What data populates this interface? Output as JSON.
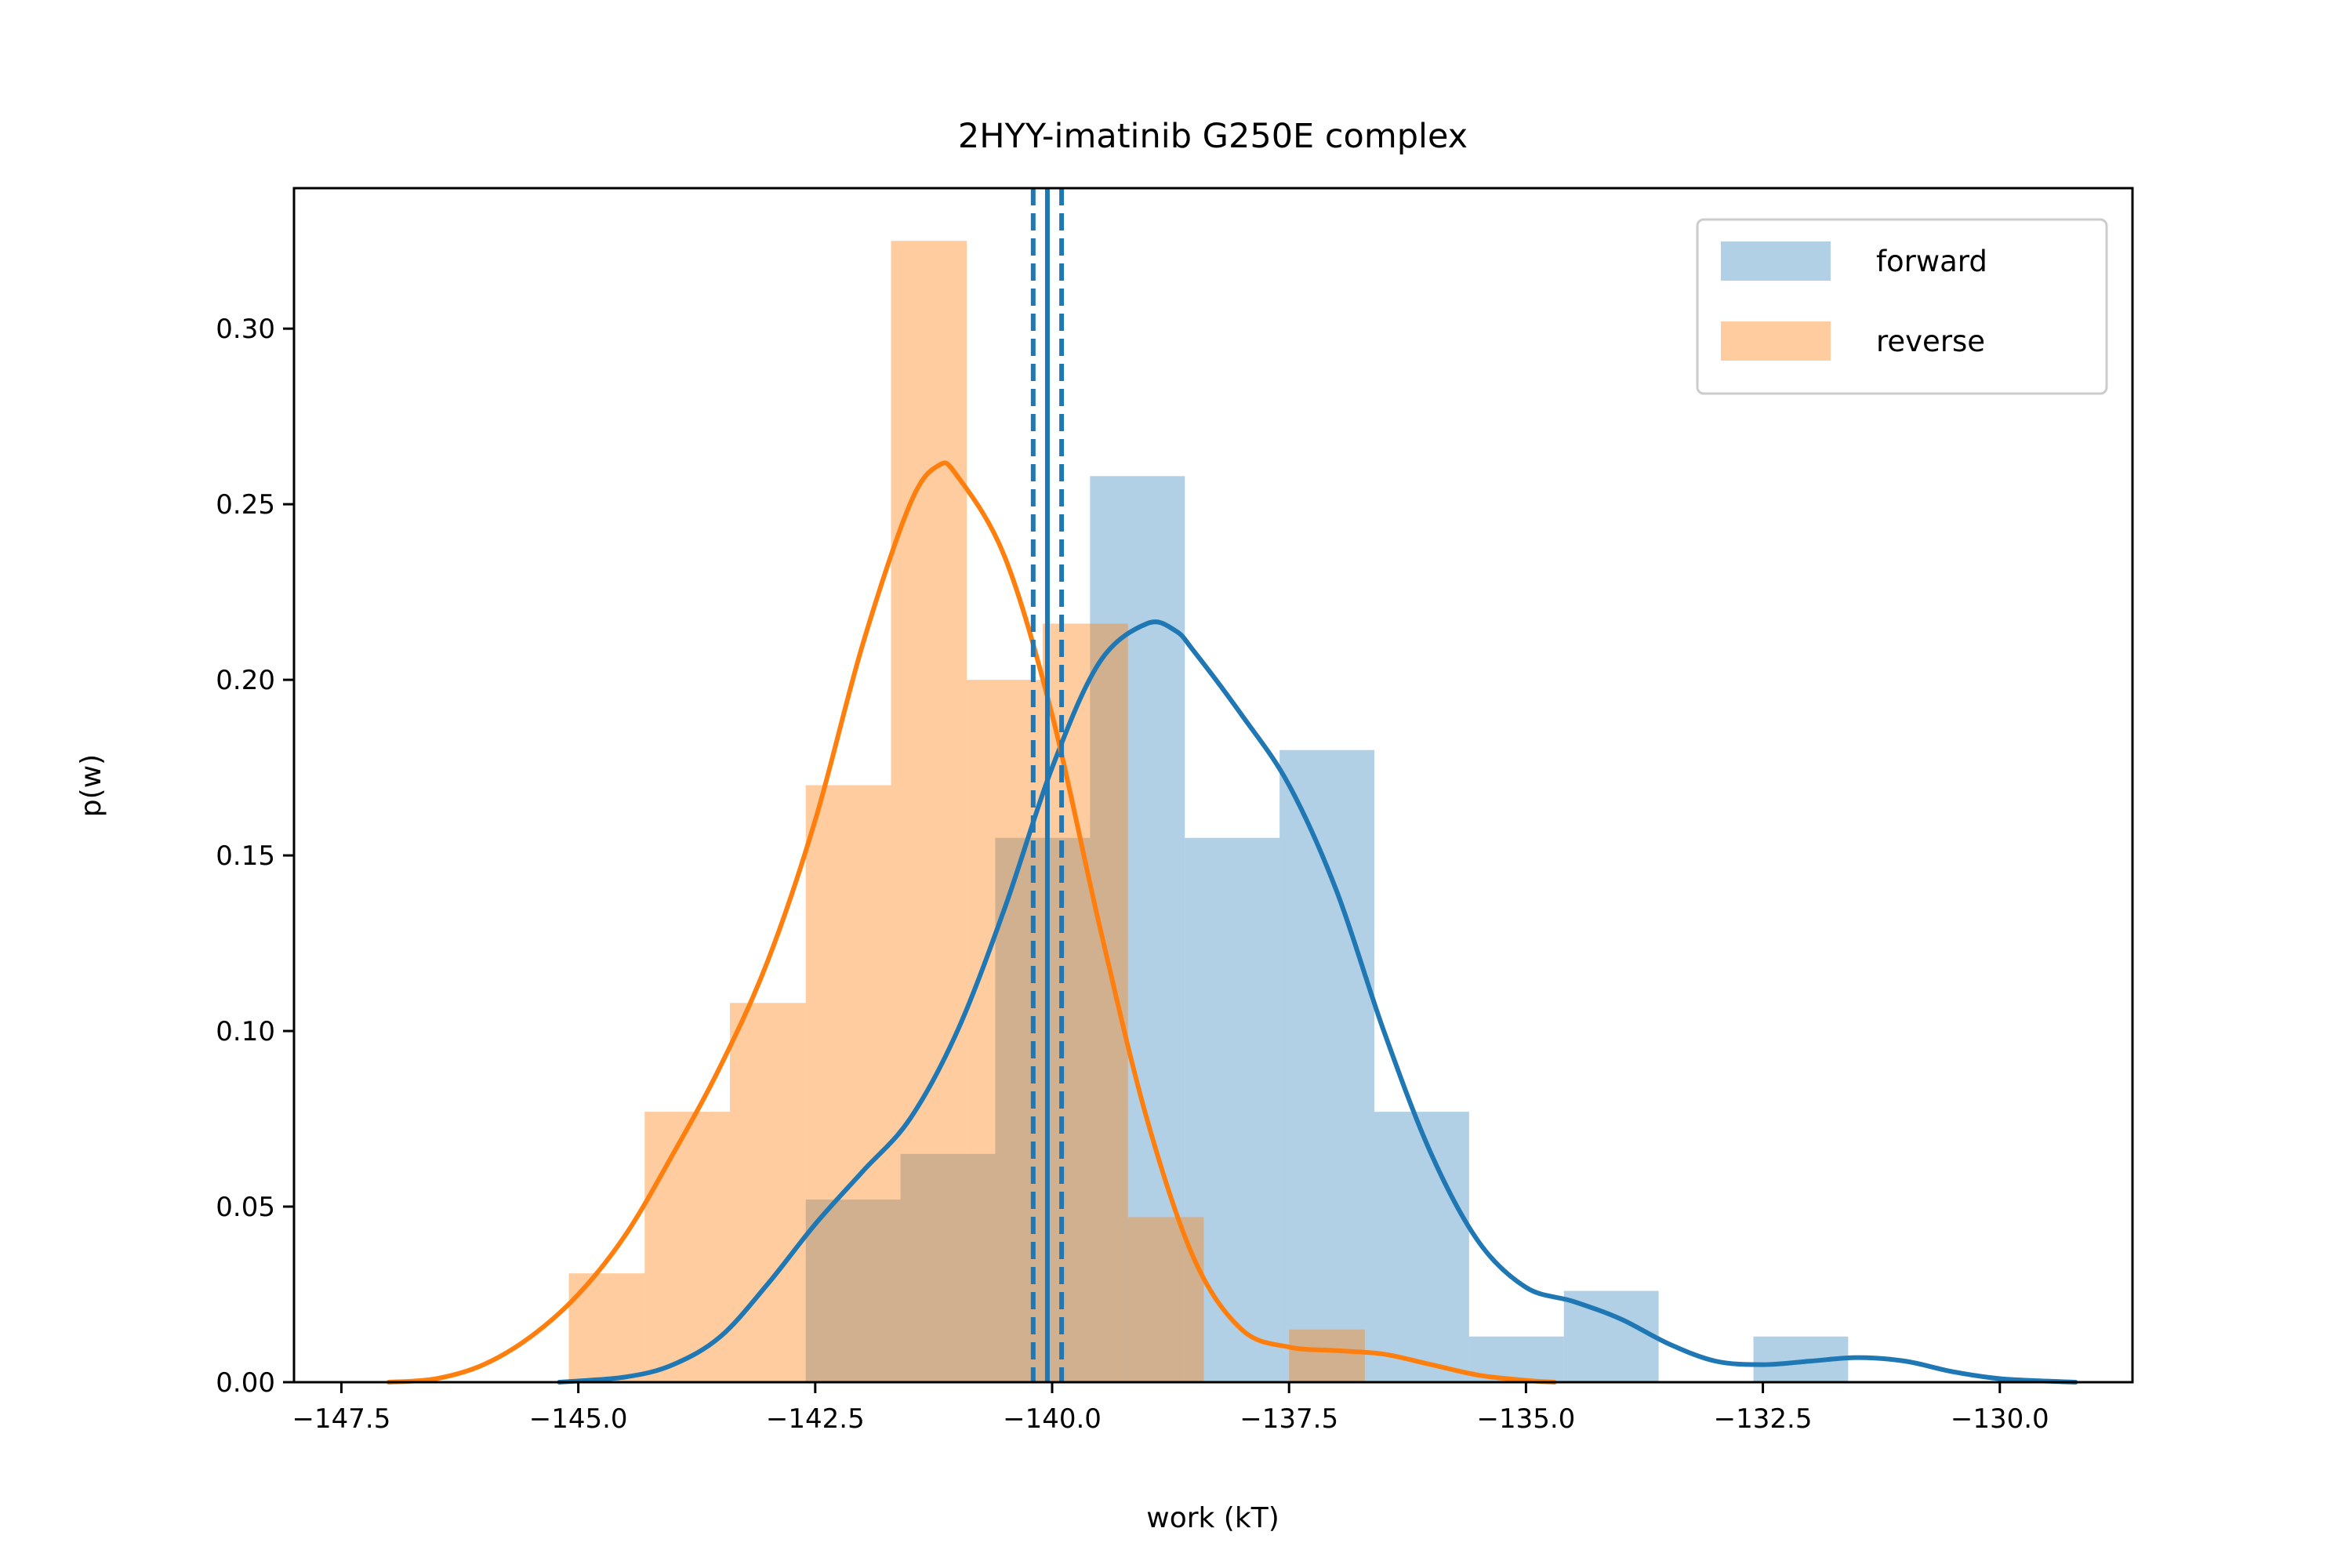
{
  "chart_data": {
    "type": "histogram",
    "title": "2HYY-imatinib G250E complex",
    "xlabel": "work (kT)",
    "ylabel": "p(w)",
    "xlim": [
      -148.0,
      -128.6
    ],
    "ylim": [
      0,
      0.34
    ],
    "xticks": [
      -147.5,
      -145.0,
      -142.5,
      -140.0,
      -137.5,
      -135.0,
      -132.5,
      -130.0
    ],
    "xtick_labels": [
      "−147.5",
      "−145.0",
      "−142.5",
      "−140.0",
      "−137.5",
      "−135.0",
      "−132.5",
      "−130.0"
    ],
    "yticks": [
      0.0,
      0.05,
      0.1,
      0.15,
      0.2,
      0.25,
      0.3
    ],
    "ytick_labels": [
      "0.00",
      "0.05",
      "0.10",
      "0.15",
      "0.20",
      "0.25",
      "0.30"
    ],
    "grid": false,
    "legend_position": "top-right",
    "series": [
      {
        "name": "forward",
        "color": "#1f77b4",
        "bar_alpha": 0.35,
        "bins": [
          {
            "x0": -142.6,
            "x1": -141.6,
            "height": 0.052
          },
          {
            "x0": -141.6,
            "x1": -140.6,
            "height": 0.065
          },
          {
            "x0": -140.6,
            "x1": -139.6,
            "height": 0.155
          },
          {
            "x0": -139.6,
            "x1": -138.6,
            "height": 0.258
          },
          {
            "x0": -138.6,
            "x1": -137.6,
            "height": 0.155
          },
          {
            "x0": -137.6,
            "x1": -136.6,
            "height": 0.18
          },
          {
            "x0": -136.6,
            "x1": -135.6,
            "height": 0.077
          },
          {
            "x0": -135.6,
            "x1": -134.6,
            "height": 0.013
          },
          {
            "x0": -134.6,
            "x1": -133.6,
            "height": 0.026
          },
          {
            "x0": -133.6,
            "x1": -132.6,
            "height": 0.0
          },
          {
            "x0": -132.6,
            "x1": -131.6,
            "height": 0.013
          }
        ],
        "kde": {
          "x": [
            -145.2,
            -144.5,
            -144.0,
            -143.5,
            -143.0,
            -142.5,
            -142.0,
            -141.5,
            -141.0,
            -140.5,
            -140.0,
            -139.5,
            -139.0,
            -138.7,
            -138.5,
            -138.0,
            -137.5,
            -137.0,
            -136.5,
            -136.0,
            -135.5,
            -135.0,
            -134.5,
            -134.0,
            -133.5,
            -133.0,
            -132.5,
            -132.0,
            -131.5,
            -131.0,
            -130.5,
            -130.0,
            -129.5,
            -129.2
          ],
          "y": [
            0.0,
            0.0015,
            0.005,
            0.013,
            0.028,
            0.045,
            0.06,
            0.075,
            0.1,
            0.135,
            0.175,
            0.205,
            0.216,
            0.214,
            0.208,
            0.19,
            0.17,
            0.14,
            0.1,
            0.065,
            0.04,
            0.027,
            0.023,
            0.018,
            0.011,
            0.006,
            0.005,
            0.006,
            0.007,
            0.006,
            0.003,
            0.001,
            0.0003,
            0.0
          ]
        }
      },
      {
        "name": "reverse",
        "color": "#ff7f0e",
        "bar_alpha": 0.4,
        "bins": [
          {
            "x0": -145.1,
            "x1": -144.3,
            "height": 0.031
          },
          {
            "x0": -144.3,
            "x1": -143.4,
            "height": 0.077
          },
          {
            "x0": -143.4,
            "x1": -142.6,
            "height": 0.108
          },
          {
            "x0": -142.6,
            "x1": -141.7,
            "height": 0.17
          },
          {
            "x0": -141.7,
            "x1": -140.9,
            "height": 0.325
          },
          {
            "x0": -140.9,
            "x1": -140.1,
            "height": 0.2
          },
          {
            "x0": -140.1,
            "x1": -139.2,
            "height": 0.216
          },
          {
            "x0": -139.2,
            "x1": -138.4,
            "height": 0.047
          },
          {
            "x0": -138.4,
            "x1": -137.5,
            "height": 0.0
          },
          {
            "x0": -137.5,
            "x1": -136.7,
            "height": 0.015
          }
        ],
        "kde": {
          "x": [
            -147.0,
            -146.5,
            -146.0,
            -145.5,
            -145.0,
            -144.5,
            -144.0,
            -143.5,
            -143.0,
            -142.5,
            -142.0,
            -141.5,
            -141.2,
            -141.0,
            -140.5,
            -140.0,
            -139.5,
            -139.0,
            -138.5,
            -138.0,
            -137.5,
            -137.0,
            -136.5,
            -136.0,
            -135.5,
            -135.0,
            -134.7
          ],
          "y": [
            0.0,
            0.001,
            0.005,
            0.013,
            0.025,
            0.042,
            0.065,
            0.09,
            0.12,
            0.16,
            0.21,
            0.25,
            0.261,
            0.258,
            0.235,
            0.19,
            0.13,
            0.075,
            0.035,
            0.015,
            0.01,
            0.009,
            0.008,
            0.005,
            0.002,
            0.0005,
            0.0
          ]
        }
      }
    ],
    "vlines": [
      {
        "x": -140.05,
        "style": "solid",
        "color": "#1f77b4"
      },
      {
        "x": -140.2,
        "style": "dashed",
        "color": "#1f77b4"
      },
      {
        "x": -139.9,
        "style": "dashed",
        "color": "#1f77b4"
      }
    ]
  }
}
